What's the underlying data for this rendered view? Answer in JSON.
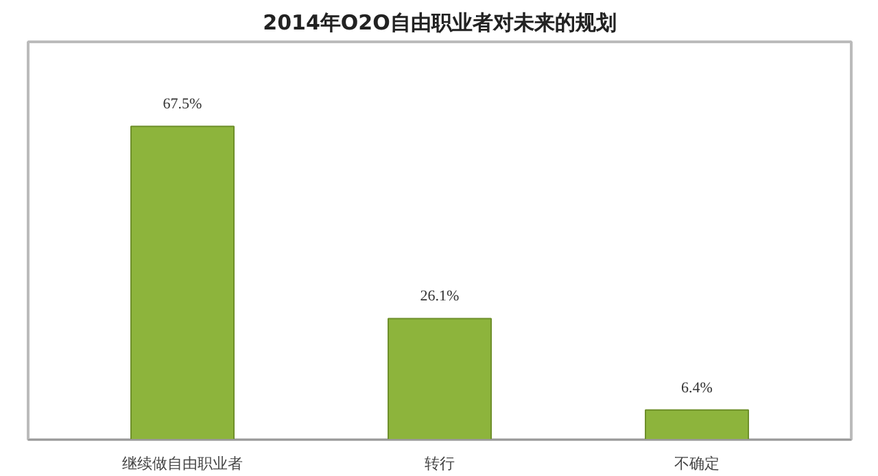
{
  "chart_data": {
    "type": "bar",
    "title": "2014年O2O自由职业者对未来的规划",
    "categories": [
      "继续做自由职业者",
      "转行",
      "不确定"
    ],
    "values": [
      67.5,
      26.1,
      6.4
    ],
    "value_labels": [
      "67.5%",
      "26.1%",
      "6.4%"
    ],
    "color": "#8db43c",
    "grid": false
  }
}
